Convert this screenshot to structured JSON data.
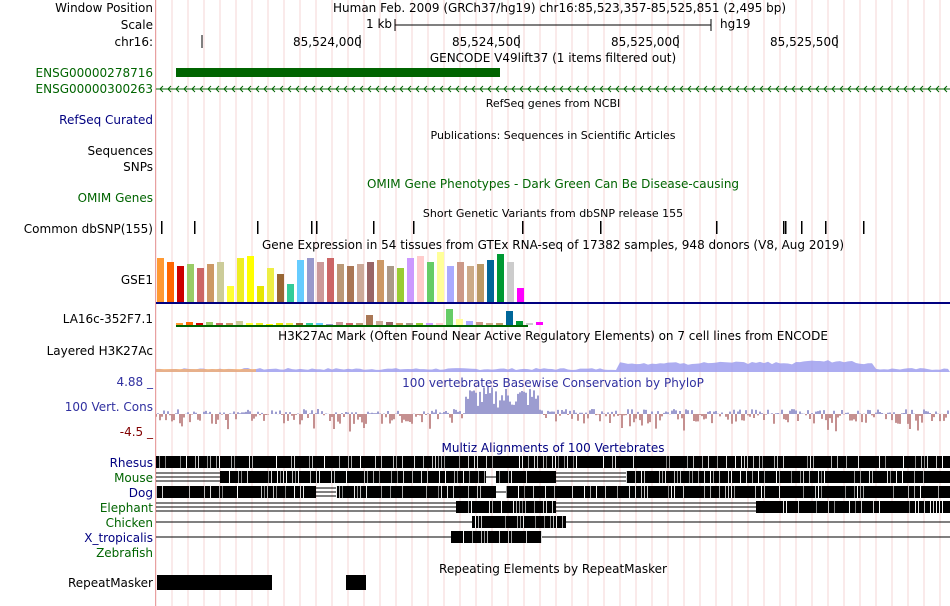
{
  "header": {
    "window_position_label": "Window Position",
    "window_position_value": "Human Feb. 2009 (GRCh37/hg19)   chr16:85,523,357-85,525,851 (2,495 bp)",
    "scale_label": "Scale",
    "scale_value": "1 kb",
    "assembly": "hg19",
    "chrom_label": "chr16:",
    "ticks": [
      "85,524,000",
      "85,524,500",
      "85,525,000",
      "85,525,500"
    ]
  },
  "tracks": {
    "gencode_title": "GENCODE V49lift37 (1 items filtered out)",
    "gencode_items": [
      "ENSG00000278716",
      "ENSG00000300263"
    ],
    "refseq_title": "RefSeq genes from NCBI",
    "refseq_label": "RefSeq Curated",
    "pubs_title": "Publications: Sequences in Scientific Articles",
    "sequences_label": "Sequences",
    "snps_label": "SNPs",
    "omim_title": "OMIM Gene Phenotypes - Dark Green Can Be Disease-causing",
    "omim_label": "OMIM Genes",
    "dbsnp_title": "Short Genetic Variants from dbSNP release 155",
    "dbsnp_label": "Common dbSNP(155)",
    "gtex_title": "Gene Expression in 54 tissues from GTEx RNA-seq of 17382 samples, 948 donors (V8, Aug 2019)",
    "gtex_gene1": "GSE1",
    "gtex_gene2": "LA16c-352F7.1",
    "h3k27ac_title": "H3K27Ac Mark (Often Found Near Active Regulatory Elements) on 7 cell lines from ENCODE",
    "h3k27ac_label": "Layered H3K27Ac",
    "phylop_title": "100 vertebrates Basewise Conservation by PhyloP",
    "phylop_label": "100 Vert. Cons",
    "phylop_max": "4.88 _",
    "phylop_min": "-4.5 _",
    "multiz_title": "Multiz Alignments of 100 Vertebrates",
    "species": [
      "Rhesus",
      "Mouse",
      "Dog",
      "Elephant",
      "Chicken",
      "X_tropicalis",
      "Zebrafish"
    ],
    "rmsk_title": "Repeating Elements by RepeatMasker",
    "rmsk_label": "RepeatMasker"
  },
  "colors": {
    "gencode_green": "#006400",
    "label_navy": "#000080",
    "phylop_blue": "#3a3aa0",
    "phylop_red": "#8b2020",
    "guideline": "#e8a0a0"
  }
}
